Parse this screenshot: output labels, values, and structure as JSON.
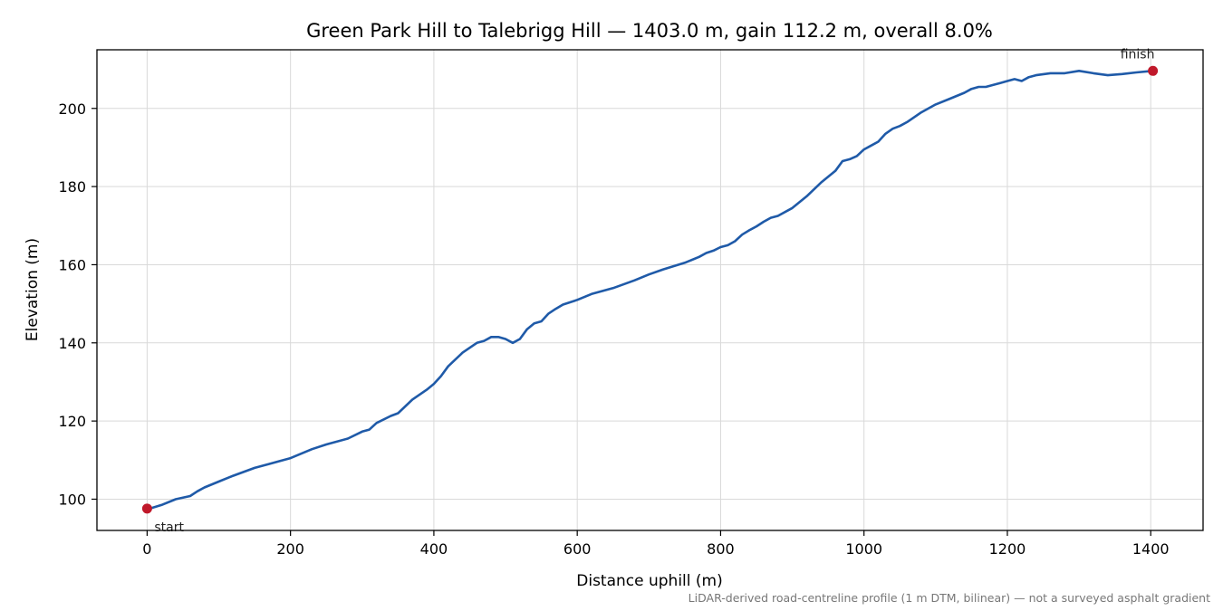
{
  "chart_data": {
    "type": "line",
    "title": "Green Park Hill to Talebrigg Hill — 1403.0 m, gain 112.2 m, overall 8.0%",
    "xlabel": "Distance uphill (m)",
    "ylabel": "Elevation (m)",
    "xlim": [
      -70,
      1473
    ],
    "ylim": [
      92,
      215
    ],
    "xticks": [
      0,
      200,
      400,
      600,
      800,
      1000,
      1200,
      1400
    ],
    "yticks": [
      100,
      120,
      140,
      160,
      180,
      200
    ],
    "grid": true,
    "line_color": "#1f5aa8",
    "marker_color": "#c0182a",
    "series": [
      {
        "x": [
          0,
          20,
          40,
          60,
          70,
          80,
          100,
          120,
          150,
          170,
          200,
          230,
          250,
          280,
          300,
          310,
          320,
          340,
          350,
          370,
          390,
          400,
          410,
          420,
          440,
          460,
          470,
          480,
          490,
          500,
          510,
          520,
          530,
          540,
          550,
          560,
          570,
          580,
          600,
          620,
          650,
          680,
          700,
          720,
          750,
          770,
          780,
          790,
          800,
          810,
          820,
          830,
          840,
          850,
          860,
          870,
          880,
          900,
          920,
          940,
          960,
          970,
          980,
          990,
          1000,
          1010,
          1020,
          1030,
          1040,
          1050,
          1060,
          1080,
          1100,
          1120,
          1140,
          1150,
          1160,
          1170,
          1180,
          1190,
          1200,
          1210,
          1220,
          1230,
          1240,
          1260,
          1280,
          1300,
          1320,
          1340,
          1360,
          1380,
          1403
        ],
        "y": [
          97.4,
          98.5,
          100.0,
          100.8,
          102.0,
          103.0,
          104.5,
          106.0,
          108.0,
          109.0,
          110.5,
          112.8,
          114.0,
          115.5,
          117.3,
          117.8,
          119.5,
          121.3,
          122.0,
          125.5,
          128.0,
          129.5,
          131.5,
          134.0,
          137.5,
          140.0,
          140.5,
          141.5,
          141.5,
          141.0,
          140.0,
          141.0,
          143.5,
          145.0,
          145.5,
          147.5,
          148.7,
          149.8,
          151.0,
          152.5,
          154.0,
          156.0,
          157.5,
          158.8,
          160.5,
          162.0,
          163.0,
          163.6,
          164.5,
          165.0,
          166.0,
          167.7,
          168.8,
          169.8,
          171.0,
          172.0,
          172.5,
          174.5,
          177.5,
          181.0,
          184.0,
          186.5,
          187.0,
          187.8,
          189.5,
          190.5,
          191.5,
          193.5,
          194.8,
          195.5,
          196.5,
          199.0,
          201.0,
          202.5,
          204.0,
          205.0,
          205.5,
          205.5,
          206.0,
          206.5,
          207.0,
          207.5,
          207.0,
          208.0,
          208.5,
          209.0,
          209.0,
          209.6,
          209.0,
          208.5,
          208.8,
          209.2,
          209.6
        ]
      }
    ],
    "annotations": [
      {
        "text": "start",
        "x": 0,
        "y": 97.6
      },
      {
        "text": "finish",
        "x": 1403,
        "y": 209.6
      }
    ],
    "footnote": "LiDAR-derived road-centreline profile (1 m DTM, bilinear) — not a surveyed asphalt gradient"
  }
}
